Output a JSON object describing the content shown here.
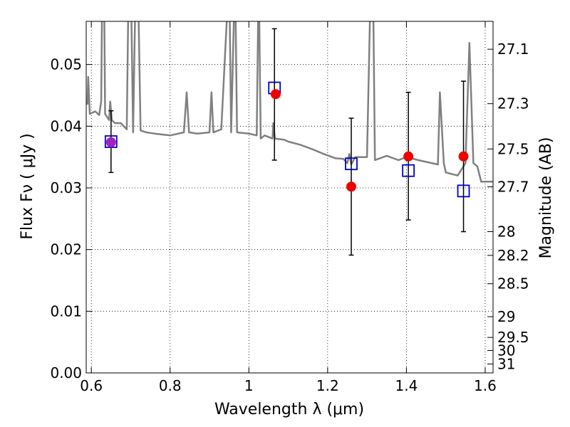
{
  "chart_data": {
    "type": "scatter",
    "xlabel": "Wavelength  λ (μm)",
    "ylabel": "Flux  Fν  ( μJy )",
    "y2label": "Magnitude (AB)",
    "xlim": [
      0.587,
      1.62
    ],
    "ylim": [
      0.0,
      0.057
    ],
    "xticks": [
      0.6,
      0.8,
      1.0,
      1.2,
      1.4,
      1.6
    ],
    "xtick_labels": [
      "0.6",
      "0.8",
      "1",
      "1.2",
      "1.4",
      "1.6"
    ],
    "yticks": [
      0.0,
      0.01,
      0.02,
      0.03,
      0.04,
      0.05
    ],
    "ytick_labels": [
      "0.00",
      "0.01",
      "0.02",
      "0.03",
      "0.04",
      "0.05"
    ],
    "y2ticks": [
      27.1,
      27.3,
      27.5,
      27.7,
      28,
      28.2,
      28.5,
      29,
      29.5,
      30,
      31
    ],
    "y2tick_labels": [
      "27.1",
      "27.3",
      "27.5",
      "27.7",
      "28",
      "28.2",
      "28.5",
      "29",
      "29.5",
      "30",
      "31"
    ],
    "grid": true,
    "series": [
      {
        "kind": "line",
        "color": "#808080",
        "points": [
          [
            0.59,
            0.0435
          ],
          [
            0.592,
            0.048
          ],
          [
            0.596,
            0.042
          ],
          [
            0.61,
            0.0424
          ],
          [
            0.62,
            0.0418
          ],
          [
            0.625,
            0.044
          ],
          [
            0.628,
            0.065
          ],
          [
            0.632,
            0.065
          ],
          [
            0.635,
            0.042
          ],
          [
            0.64,
            0.0415
          ],
          [
            0.645,
            0.041
          ],
          [
            0.648,
            0.044
          ],
          [
            0.652,
            0.041
          ],
          [
            0.66,
            0.0405
          ],
          [
            0.675,
            0.0405
          ],
          [
            0.69,
            0.0395
          ],
          [
            0.695,
            0.065
          ],
          [
            0.7,
            0.065
          ],
          [
            0.706,
            0.039
          ],
          [
            0.713,
            0.065
          ],
          [
            0.718,
            0.065
          ],
          [
            0.725,
            0.0393
          ],
          [
            0.74,
            0.039
          ],
          [
            0.76,
            0.0388
          ],
          [
            0.8,
            0.0385
          ],
          [
            0.835,
            0.039
          ],
          [
            0.842,
            0.0455
          ],
          [
            0.848,
            0.039
          ],
          [
            0.87,
            0.0388
          ],
          [
            0.9,
            0.039
          ],
          [
            0.905,
            0.0455
          ],
          [
            0.91,
            0.039
          ],
          [
            0.93,
            0.0395
          ],
          [
            0.95,
            0.065
          ],
          [
            0.955,
            0.039
          ],
          [
            0.965,
            0.065
          ],
          [
            0.97,
            0.039
          ],
          [
            1.0,
            0.0388
          ],
          [
            1.02,
            0.0385
          ],
          [
            1.025,
            0.065
          ],
          [
            1.03,
            0.038
          ],
          [
            1.04,
            0.0385
          ],
          [
            1.06,
            0.038
          ],
          [
            1.062,
            0.0405
          ],
          [
            1.066,
            0.038
          ],
          [
            1.09,
            0.0378
          ],
          [
            1.1,
            0.0375
          ],
          [
            1.13,
            0.037
          ],
          [
            1.16,
            0.0363
          ],
          [
            1.19,
            0.0355
          ],
          [
            1.22,
            0.0348
          ],
          [
            1.24,
            0.0347
          ],
          [
            1.25,
            0.034
          ],
          [
            1.255,
            0.0355
          ],
          [
            1.26,
            0.0338
          ],
          [
            1.27,
            0.035
          ],
          [
            1.3,
            0.035
          ],
          [
            1.31,
            0.065
          ],
          [
            1.315,
            0.065
          ],
          [
            1.32,
            0.0345
          ],
          [
            1.35,
            0.0352
          ],
          [
            1.38,
            0.0345
          ],
          [
            1.4,
            0.035
          ],
          [
            1.43,
            0.0345
          ],
          [
            1.48,
            0.0338
          ],
          [
            1.485,
            0.0455
          ],
          [
            1.495,
            0.034
          ],
          [
            1.5,
            0.0325
          ],
          [
            1.53,
            0.032
          ],
          [
            1.55,
            0.034
          ],
          [
            1.56,
            0.0535
          ],
          [
            1.57,
            0.034
          ],
          [
            1.58,
            0.0335
          ],
          [
            1.59,
            0.031
          ],
          [
            1.62,
            0.031
          ]
        ]
      },
      {
        "kind": "errorbars",
        "color": "#000000",
        "points": [
          {
            "x": 0.65,
            "y": 0.0375,
            "lo": 0.0325,
            "hi": 0.0425
          },
          {
            "x": 1.065,
            "y": 0.0452,
            "lo": 0.0345,
            "hi": 0.0558
          },
          {
            "x": 1.26,
            "y": 0.0302,
            "lo": 0.0191,
            "hi": 0.0413
          },
          {
            "x": 1.405,
            "y": 0.0351,
            "lo": 0.0248,
            "hi": 0.0455
          },
          {
            "x": 1.545,
            "y": 0.0351,
            "lo": 0.0229,
            "hi": 0.0473
          }
        ]
      },
      {
        "kind": "open-squares",
        "color": "#0000cc",
        "points": [
          [
            0.65,
            0.0375
          ],
          [
            1.065,
            0.0462
          ],
          [
            1.26,
            0.0339
          ],
          [
            1.405,
            0.0328
          ],
          [
            1.545,
            0.0295
          ]
        ]
      },
      {
        "kind": "filled-circles",
        "color": "#ee0000",
        "points": [
          [
            0.65,
            0.0374
          ],
          [
            1.068,
            0.0452
          ],
          [
            1.26,
            0.0302
          ],
          [
            1.405,
            0.0351
          ],
          [
            1.545,
            0.0351
          ]
        ],
        "first_color": "#a020c0"
      }
    ]
  }
}
